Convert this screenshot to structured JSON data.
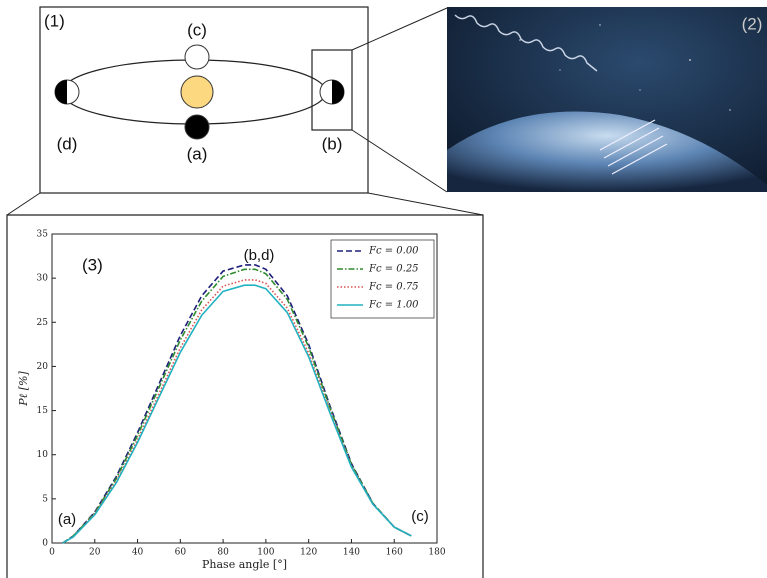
{
  "diagram": {
    "panel_1": "(1)",
    "panel_2": "(2)",
    "label_c": "(c)",
    "label_d": "(d)",
    "label_a": "(a)",
    "label_b": "(b)"
  },
  "chart_data": {
    "type": "line",
    "xlabel": "Phase angle [°]",
    "ylabel": "Pℓ [%]",
    "annotations": [
      "(3)",
      "(b,d)",
      "(a)",
      "(c)"
    ],
    "x": [
      5,
      10,
      20,
      30,
      40,
      50,
      60,
      70,
      80,
      90,
      95,
      100,
      110,
      120,
      130,
      140,
      150,
      160,
      168
    ],
    "series": [
      {
        "name": "Fc = 0.00",
        "color": "#1f1f7a",
        "dash": "dashed",
        "values": [
          0,
          0.8,
          3.5,
          7.5,
          12.5,
          18,
          23.5,
          28,
          30.8,
          31.5,
          31.5,
          31,
          28,
          22.5,
          15.5,
          9,
          4.5,
          1.8,
          0.8
        ]
      },
      {
        "name": "Fc = 0.25",
        "color": "#2e8b2e",
        "dash": "dashdot",
        "values": [
          0,
          0.8,
          3.4,
          7.3,
          12.2,
          17.6,
          23,
          27.4,
          30.2,
          31,
          31,
          30.5,
          27.6,
          22.2,
          15.3,
          8.9,
          4.5,
          1.8,
          0.8
        ]
      },
      {
        "name": "Fc = 0.75",
        "color": "#d9534f",
        "dash": "dotted",
        "values": [
          0,
          0.7,
          3.3,
          7.0,
          11.7,
          16.9,
          22.1,
          26.4,
          29.1,
          29.8,
          29.8,
          29.4,
          26.6,
          21.5,
          14.9,
          8.7,
          4.4,
          1.8,
          0.8
        ]
      },
      {
        "name": "Fc = 1.00",
        "color": "#20b2c0",
        "dash": "solid",
        "values": [
          0,
          0.7,
          3.2,
          6.8,
          11.4,
          16.5,
          21.6,
          25.8,
          28.5,
          29.2,
          29.2,
          28.8,
          26.1,
          21.1,
          14.7,
          8.6,
          4.4,
          1.8,
          0.8
        ]
      }
    ],
    "xlim": [
      0,
      180
    ],
    "xticks": [
      0,
      20,
      40,
      60,
      80,
      100,
      120,
      140,
      160,
      180
    ],
    "ylim": [
      0,
      35
    ],
    "yticks": [
      0,
      5,
      10,
      15,
      20,
      25,
      30,
      35
    ],
    "grid": false,
    "legend": "upper right"
  }
}
